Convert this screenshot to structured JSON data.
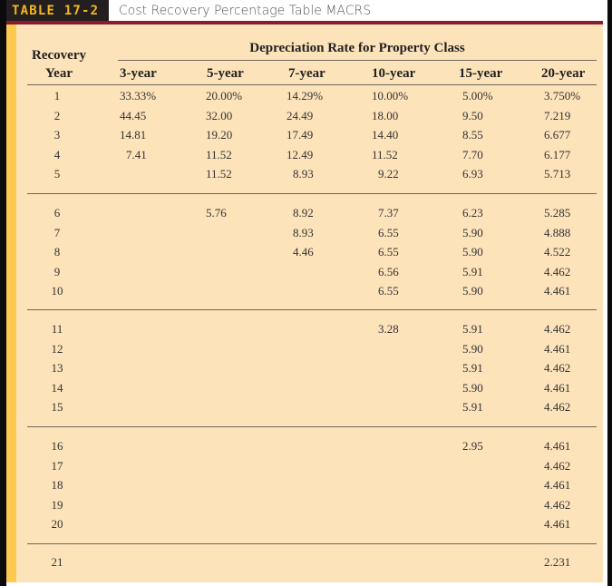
{
  "title": {
    "tab_label": "TABLE 17-2",
    "text": "Cost Recovery Percentage Table MACRS"
  },
  "header": {
    "recovery_year_line1": "Recovery",
    "recovery_year_line2": "Year",
    "group_label": "Depreciation Rate for Property Class",
    "columns": [
      "3-year",
      "5-year",
      "7-year",
      "10-year",
      "15-year",
      "20-year"
    ]
  },
  "rows": [
    {
      "year": "1",
      "c3": "33.33%",
      "c5": "20.00%",
      "c7": "14.29%",
      "c10": "10.00%",
      "c15": "5.00%",
      "c20": "3.750%"
    },
    {
      "year": "2",
      "c3": "44.45",
      "c5": "32.00",
      "c7": "24.49",
      "c10": "18.00",
      "c15": "9.50",
      "c20": "7.219"
    },
    {
      "year": "3",
      "c3": "14.81",
      "c5": "19.20",
      "c7": "17.49",
      "c10": "14.40",
      "c15": "8.55",
      "c20": "6.677"
    },
    {
      "year": "4",
      "c3": "7.41",
      "c5": "11.52",
      "c7": "12.49",
      "c10": "11.52",
      "c15": "7.70",
      "c20": "6.177"
    },
    {
      "year": "5",
      "c3": "",
      "c5": "11.52",
      "c7": "8.93",
      "c10": "9.22",
      "c15": "6.93",
      "c20": "5.713"
    },
    {
      "year": "6",
      "c3": "",
      "c5": "5.76",
      "c7": "8.92",
      "c10": "7.37",
      "c15": "6.23",
      "c20": "5.285"
    },
    {
      "year": "7",
      "c3": "",
      "c5": "",
      "c7": "8.93",
      "c10": "6.55",
      "c15": "5.90",
      "c20": "4.888"
    },
    {
      "year": "8",
      "c3": "",
      "c5": "",
      "c7": "4.46",
      "c10": "6.55",
      "c15": "5.90",
      "c20": "4.522"
    },
    {
      "year": "9",
      "c3": "",
      "c5": "",
      "c7": "",
      "c10": "6.56",
      "c15": "5.91",
      "c20": "4.462"
    },
    {
      "year": "10",
      "c3": "",
      "c5": "",
      "c7": "",
      "c10": "6.55",
      "c15": "5.90",
      "c20": "4.461"
    },
    {
      "year": "11",
      "c3": "",
      "c5": "",
      "c7": "",
      "c10": "3.28",
      "c15": "5.91",
      "c20": "4.462"
    },
    {
      "year": "12",
      "c3": "",
      "c5": "",
      "c7": "",
      "c10": "",
      "c15": "5.90",
      "c20": "4.461"
    },
    {
      "year": "13",
      "c3": "",
      "c5": "",
      "c7": "",
      "c10": "",
      "c15": "5.91",
      "c20": "4.462"
    },
    {
      "year": "14",
      "c3": "",
      "c5": "",
      "c7": "",
      "c10": "",
      "c15": "5.90",
      "c20": "4.461"
    },
    {
      "year": "15",
      "c3": "",
      "c5": "",
      "c7": "",
      "c10": "",
      "c15": "5.91",
      "c20": "4.462"
    },
    {
      "year": "16",
      "c3": "",
      "c5": "",
      "c7": "",
      "c10": "",
      "c15": "2.95",
      "c20": "4.461"
    },
    {
      "year": "17",
      "c3": "",
      "c5": "",
      "c7": "",
      "c10": "",
      "c15": "",
      "c20": "4.462"
    },
    {
      "year": "18",
      "c3": "",
      "c5": "",
      "c7": "",
      "c10": "",
      "c15": "",
      "c20": "4.461"
    },
    {
      "year": "19",
      "c3": "",
      "c5": "",
      "c7": "",
      "c10": "",
      "c15": "",
      "c20": "4.462"
    },
    {
      "year": "20",
      "c3": "",
      "c5": "",
      "c7": "",
      "c10": "",
      "c15": "",
      "c20": "4.461"
    },
    {
      "year": "21",
      "c3": "",
      "c5": "",
      "c7": "",
      "c10": "",
      "c15": "",
      "c20": "2.231"
    }
  ],
  "colors": {
    "tab_bg": "#231f20",
    "tab_text": "#f4b81d",
    "rule_red": "#8b1c2b",
    "panel_bg": "#fde3ba",
    "accent_bar": "#fdc94f"
  }
}
